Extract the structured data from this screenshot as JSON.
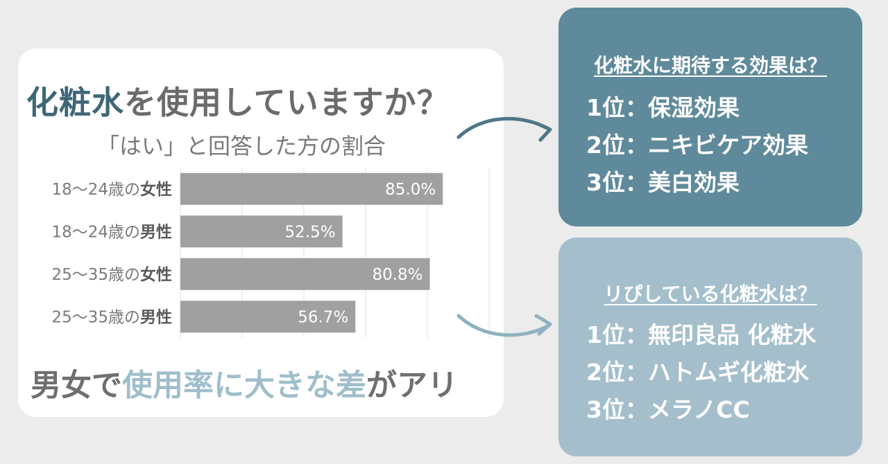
{
  "colors": {
    "background": "#ececec",
    "card": "#ffffff",
    "title_accent": "#3f6677",
    "footer_accent": "#9fbecb",
    "bar": "#a0a0a0",
    "box_dark": "#5f8a9b",
    "box_light": "#a4bfcb",
    "arrow_dark": "#4e7686",
    "arrow_light": "#8fb2c0"
  },
  "title": {
    "accent": "化粧水",
    "rest": "を使用していますか？"
  },
  "subtitle": "「はい」と回答した方の割合",
  "chart_data": {
    "type": "bar",
    "orientation": "horizontal",
    "categories": [
      {
        "prefix": "18〜24歳の",
        "gender": "女性"
      },
      {
        "prefix": "18〜24歳の",
        "gender": "男性"
      },
      {
        "prefix": "25〜35歳の",
        "gender": "女性"
      },
      {
        "prefix": "25〜35歳の",
        "gender": "男性"
      }
    ],
    "values": [
      85.0,
      52.5,
      80.8,
      56.7
    ],
    "value_labels": [
      "85.0%",
      "52.5%",
      "80.8%",
      "56.7%"
    ],
    "xlim": [
      0,
      100
    ],
    "grid": true
  },
  "footer": {
    "part1": "男女で",
    "accent": "使用率に大きな差",
    "part2": "がアリ"
  },
  "effects_box": {
    "title": "化粧水に期待する効果は？",
    "items": [
      "1位：保湿効果",
      "2位：ニキビケア効果",
      "3位：美白効果"
    ]
  },
  "repeat_box": {
    "title": "リぴしている化粧水は？",
    "items": [
      "1位：無印良品 化粧水",
      "2位：ハトムギ化粧水",
      "3位：メラノCC"
    ]
  }
}
